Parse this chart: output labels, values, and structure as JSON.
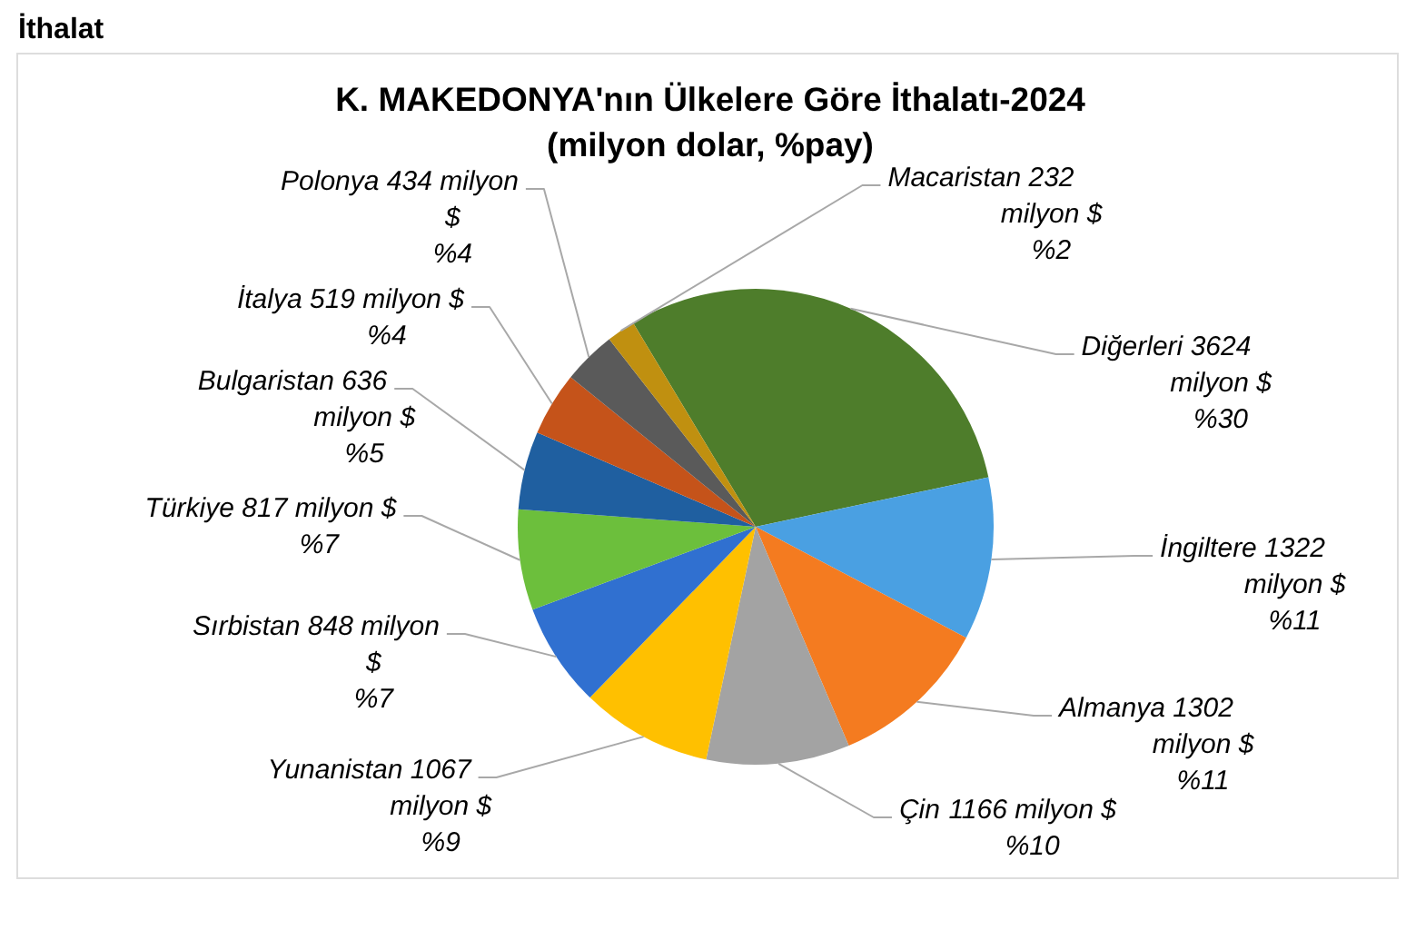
{
  "chart_data": {
    "type": "pie",
    "title": "K. MAKEDONYA'nın Ülkelere Göre İthalatı-2024",
    "subtitle": "(milyon dolar, %pay)",
    "annotations": [
      "İthalat"
    ],
    "categories": [
      "Diğerleri",
      "İngiltere",
      "Almanya",
      "Çin",
      "Yunanistan",
      "Sırbistan",
      "Türkiye",
      "Bulgaristan",
      "İtalya",
      "Polonya",
      "Macaristan"
    ],
    "values": [
      3624,
      1322,
      1302,
      1166,
      1067,
      848,
      817,
      636,
      519,
      434,
      232
    ],
    "colors": [
      "#4e7d2b",
      "#4aa0e2",
      "#f47b20",
      "#a3a3a3",
      "#ffc000",
      "#3070d0",
      "#6cbf3c",
      "#1f5fa0",
      "#c5531a",
      "#5a5a5a",
      "#c09010"
    ],
    "value_labels": [
      "3624 milyon $ %30",
      "1322 milyon $ %11",
      "1302 milyon $ %11",
      "1166 milyon $ %10",
      "1067 milyon $ %9",
      "848 milyon $ %7",
      "817 milyon $ %7",
      "636 milyon $ %5",
      "519 milyon $ %4",
      "434 milyon $ %4",
      "232 milyon $ %2"
    ]
  }
}
